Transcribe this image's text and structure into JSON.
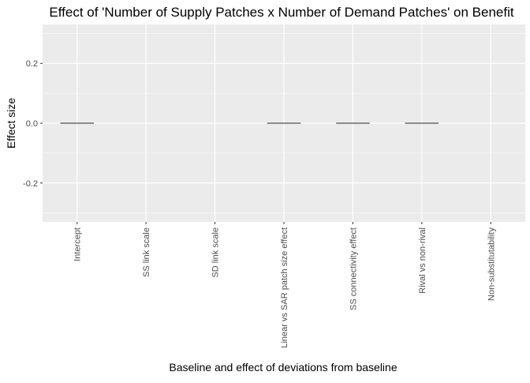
{
  "chart_data": {
    "type": "bar",
    "title": "Effect of 'Number of Supply Patches x Number of Demand Patches' on Benefit",
    "xlabel": "Baseline and effect of deviations from baseline",
    "ylabel": "Effect size",
    "categories": [
      "Intercept",
      "SS link scale",
      "SD link scale",
      "Linear vs SAR patch size effect",
      "SS connectivity effect",
      "Rival vs non-rival",
      "Non-substitutability"
    ],
    "values": [
      0.0,
      null,
      null,
      0.0,
      0.0,
      0.0,
      null
    ],
    "ylim": [
      -0.33,
      0.33
    ],
    "yticks": [
      -0.2,
      0.0,
      0.2
    ],
    "ytick_labels": [
      "-0.2",
      "0.0",
      "0.2"
    ],
    "grid": true,
    "colors": {
      "panel": "#ebebeb",
      "grid_major": "#ffffff",
      "bar_outline": "#333333",
      "tick_text": "#4d4d4d"
    }
  }
}
